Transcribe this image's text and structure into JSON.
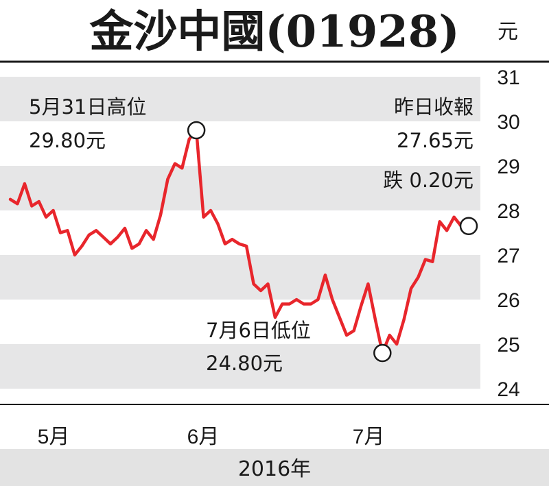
{
  "chart_data": {
    "type": "line",
    "title": "金沙中國(01928)",
    "unit": "元",
    "xlabel": "2016年",
    "x_ticks": [
      "5月",
      "6月",
      "7月"
    ],
    "y_ticks": [
      24,
      25,
      26,
      27,
      28,
      29,
      30,
      31
    ],
    "ylim": [
      24,
      31
    ],
    "grid": "alternating horizontal bands",
    "series": [
      {
        "color": "#e8262c",
        "values": [
          28.25,
          28.15,
          28.6,
          28.1,
          28.2,
          27.85,
          28.0,
          27.5,
          27.55,
          27.0,
          27.2,
          27.45,
          27.55,
          27.4,
          27.25,
          27.4,
          27.6,
          27.15,
          27.25,
          27.55,
          27.35,
          27.9,
          28.7,
          29.05,
          28.95,
          29.6,
          29.8,
          27.85,
          28.0,
          27.7,
          27.25,
          27.35,
          27.25,
          27.2,
          26.35,
          26.2,
          26.35,
          25.6,
          25.9,
          25.9,
          26.0,
          25.9,
          25.9,
          26.0,
          26.55,
          26.0,
          25.6,
          25.2,
          25.3,
          25.85,
          26.35,
          25.55,
          24.8,
          25.2,
          25.0,
          25.55,
          26.25,
          26.5,
          26.9,
          26.85,
          27.75,
          27.55,
          27.85,
          27.65
        ]
      }
    ],
    "annotations": [
      {
        "label": "5月31日高位",
        "value_label": "29.80元",
        "value": 29.8
      },
      {
        "label": "7月6日低位",
        "value_label": "24.80元",
        "value": 24.8
      },
      {
        "label": "昨日收報",
        "value_label": "27.65元",
        "change_label": "跌 0.20元",
        "value": 27.65
      }
    ]
  },
  "colors": {
    "line": "#e8262c",
    "band": "#e6e6e7",
    "footer": "#e3e3e3",
    "text": "#1a1a1a"
  }
}
